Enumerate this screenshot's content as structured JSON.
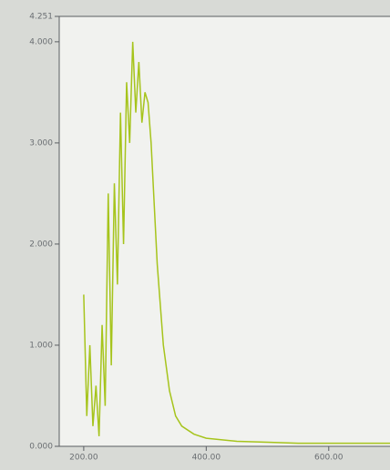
{
  "chart_data": {
    "type": "line",
    "x": [
      200,
      205,
      210,
      215,
      220,
      225,
      230,
      235,
      240,
      245,
      250,
      255,
      260,
      265,
      270,
      275,
      280,
      285,
      290,
      295,
      300,
      305,
      310,
      315,
      320,
      330,
      340,
      350,
      360,
      380,
      400,
      450,
      500,
      550,
      600,
      650,
      700
    ],
    "series": [
      {
        "color": "#a6c41c",
        "values": [
          1.5,
          0.3,
          1.0,
          0.2,
          0.6,
          0.1,
          1.2,
          0.4,
          2.5,
          0.8,
          2.6,
          1.6,
          3.3,
          2.0,
          3.6,
          3.0,
          4.0,
          3.3,
          3.8,
          3.2,
          3.5,
          3.4,
          3.0,
          2.4,
          1.8,
          1.0,
          0.55,
          0.3,
          0.2,
          0.12,
          0.08,
          0.05,
          0.04,
          0.03,
          0.03,
          0.03,
          0.03
        ]
      }
    ],
    "xlim": [
      160,
      700
    ],
    "xticks": [
      {
        "value": 200,
        "label": "200.00"
      },
      {
        "value": 400,
        "label": "400.00"
      },
      {
        "value": 600,
        "label": "600.00"
      }
    ],
    "ylim": [
      0,
      4.251
    ],
    "yticks": [
      {
        "value": 0,
        "label": "0.000"
      },
      {
        "value": 1,
        "label": "1.000"
      },
      {
        "value": 2,
        "label": "2.000"
      },
      {
        "value": 3,
        "label": "3.000"
      },
      {
        "value": 4,
        "label": "4.000"
      },
      {
        "value": 4.251,
        "label": "4.251"
      }
    ]
  }
}
